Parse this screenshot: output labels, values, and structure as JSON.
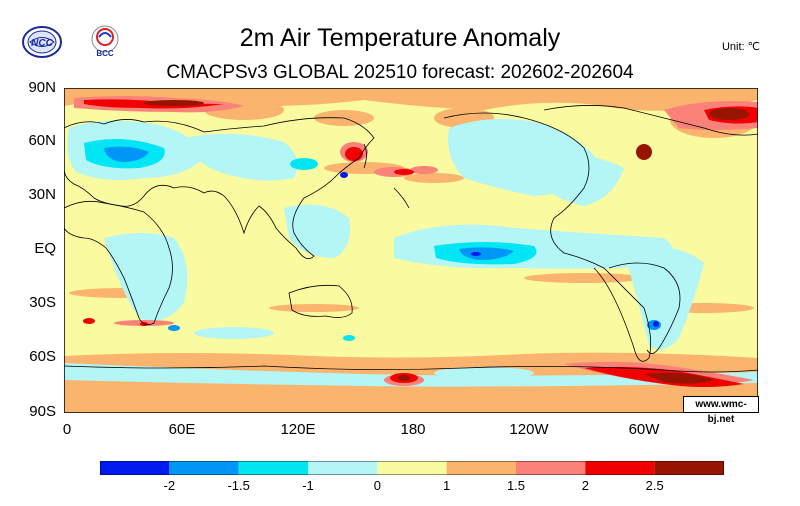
{
  "header": {
    "title": "2m Air Temperature Anomaly",
    "subtitle": "CMACPSv3 GLOBAL 202510 forecast: 202602-202604",
    "unit": "Unit: ℃"
  },
  "logos": {
    "left_text": "NCC",
    "right_text": "BCC"
  },
  "map": {
    "lat_labels": [
      "90N",
      "60N",
      "30N",
      "EQ",
      "30S",
      "60S",
      "90S"
    ],
    "lon_labels": [
      "0",
      "60E",
      "120E",
      "180",
      "120W",
      "60W"
    ],
    "watermark": "www.wmc-bj.net"
  },
  "colorbar": {
    "colors": [
      "#0019f0",
      "#0096f5",
      "#00e6f5",
      "#b4f5f5",
      "#fafaa0",
      "#fab46e",
      "#fa8278",
      "#f00000",
      "#961400"
    ],
    "labels": [
      "-2",
      "-1.5",
      "-1",
      "0",
      "1",
      "1.5",
      "2",
      "2.5"
    ]
  },
  "palette": {
    "land_outline": "#000000",
    "neutral": "#fafaa0"
  }
}
